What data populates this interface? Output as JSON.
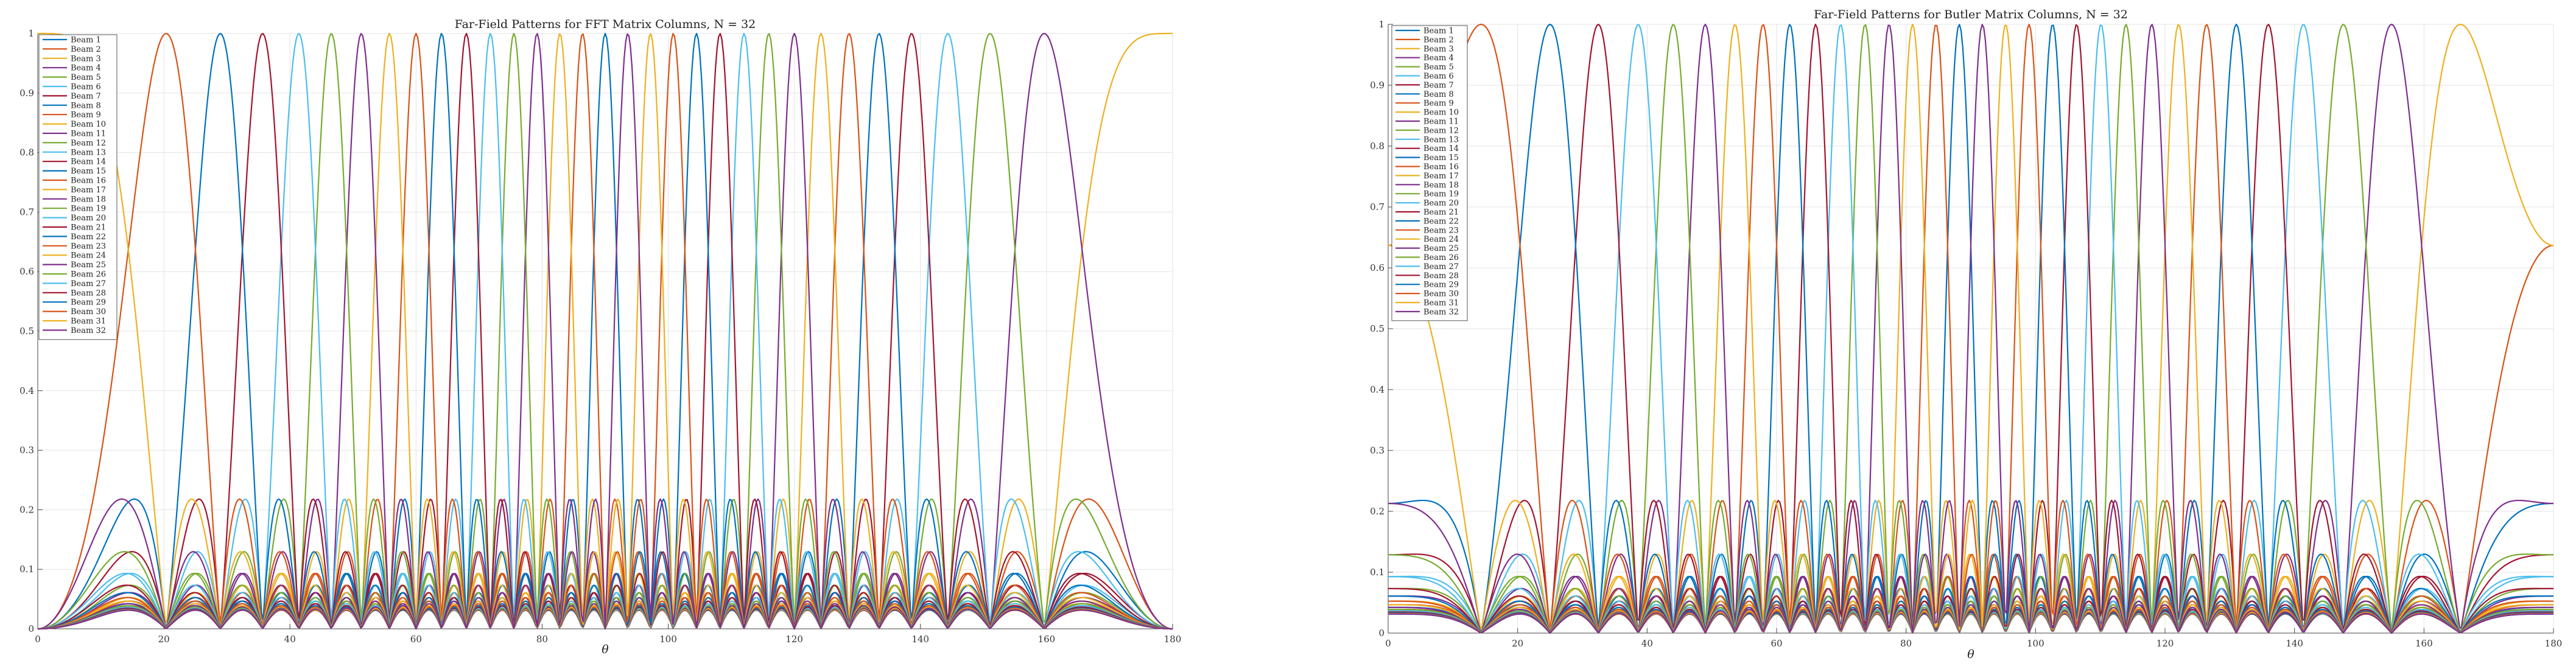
{
  "chart_data": [
    {
      "type": "line",
      "title": "Far-Field Patterns for FFT Matrix Columns, N = 32",
      "xlabel": "θ",
      "ylabel": "",
      "xlim": [
        0,
        180
      ],
      "ylim": [
        0,
        1
      ],
      "xticks": [
        "0",
        "20",
        "40",
        "60",
        "80",
        "100",
        "120",
        "140",
        "160",
        "180"
      ],
      "yticks": [
        "0",
        "0.1",
        "0.2",
        "0.3",
        "0.4",
        "0.5",
        "0.6",
        "0.7",
        "0.8",
        "0.9",
        "1"
      ],
      "grid": true,
      "legend_position": "top-left",
      "sample_step_deg": 0.25,
      "series_model": {
        "array_size": 32,
        "element_spacing_wavelengths": 0.5,
        "beam_phase_index_offset": 0
      },
      "series": [
        {
          "name": "Beam 1",
          "color": "#0072BD"
        },
        {
          "name": "Beam 2",
          "color": "#D95319"
        },
        {
          "name": "Beam 3",
          "color": "#EDB120"
        },
        {
          "name": "Beam 4",
          "color": "#7E2F8E"
        },
        {
          "name": "Beam 5",
          "color": "#77AC30"
        },
        {
          "name": "Beam 6",
          "color": "#4DBEEE"
        },
        {
          "name": "Beam 7",
          "color": "#A2142F"
        },
        {
          "name": "Beam 8",
          "color": "#0072BD"
        },
        {
          "name": "Beam 9",
          "color": "#D95319"
        },
        {
          "name": "Beam 10",
          "color": "#EDB120"
        },
        {
          "name": "Beam 11",
          "color": "#7E2F8E"
        },
        {
          "name": "Beam 12",
          "color": "#77AC30"
        },
        {
          "name": "Beam 13",
          "color": "#4DBEEE"
        },
        {
          "name": "Beam 14",
          "color": "#A2142F"
        },
        {
          "name": "Beam 15",
          "color": "#0072BD"
        },
        {
          "name": "Beam 16",
          "color": "#D95319"
        },
        {
          "name": "Beam 17",
          "color": "#EDB120"
        },
        {
          "name": "Beam 18",
          "color": "#7E2F8E"
        },
        {
          "name": "Beam 19",
          "color": "#77AC30"
        },
        {
          "name": "Beam 20",
          "color": "#4DBEEE"
        },
        {
          "name": "Beam 21",
          "color": "#A2142F"
        },
        {
          "name": "Beam 22",
          "color": "#0072BD"
        },
        {
          "name": "Beam 23",
          "color": "#D95319"
        },
        {
          "name": "Beam 24",
          "color": "#EDB120"
        },
        {
          "name": "Beam 25",
          "color": "#7E2F8E"
        },
        {
          "name": "Beam 26",
          "color": "#77AC30"
        },
        {
          "name": "Beam 27",
          "color": "#4DBEEE"
        },
        {
          "name": "Beam 28",
          "color": "#A2142F"
        },
        {
          "name": "Beam 29",
          "color": "#0072BD"
        },
        {
          "name": "Beam 30",
          "color": "#D95319"
        },
        {
          "name": "Beam 31",
          "color": "#EDB120"
        },
        {
          "name": "Beam 32",
          "color": "#7E2F8E"
        }
      ]
    },
    {
      "type": "line",
      "title": "Far-Field Patterns for Butler Matrix Columns, N = 32",
      "xlabel": "θ",
      "ylabel": "",
      "xlim": [
        0,
        180
      ],
      "ylim": [
        0,
        1
      ],
      "xticks": [
        "0",
        "20",
        "40",
        "60",
        "80",
        "100",
        "120",
        "140",
        "160",
        "180"
      ],
      "yticks": [
        "0",
        "0.1",
        "0.2",
        "0.3",
        "0.4",
        "0.5",
        "0.6",
        "0.7",
        "0.8",
        "0.9",
        "1"
      ],
      "grid": true,
      "legend_position": "top-left",
      "sample_step_deg": 0.25,
      "series_model": {
        "array_size": 32,
        "element_spacing_wavelengths": 0.5,
        "beam_phase_index_offset": 0.5
      },
      "series": [
        {
          "name": "Beam 1",
          "color": "#0072BD"
        },
        {
          "name": "Beam 2",
          "color": "#D95319"
        },
        {
          "name": "Beam 3",
          "color": "#EDB120"
        },
        {
          "name": "Beam 4",
          "color": "#7E2F8E"
        },
        {
          "name": "Beam 5",
          "color": "#77AC30"
        },
        {
          "name": "Beam 6",
          "color": "#4DBEEE"
        },
        {
          "name": "Beam 7",
          "color": "#A2142F"
        },
        {
          "name": "Beam 8",
          "color": "#0072BD"
        },
        {
          "name": "Beam 9",
          "color": "#D95319"
        },
        {
          "name": "Beam 10",
          "color": "#EDB120"
        },
        {
          "name": "Beam 11",
          "color": "#7E2F8E"
        },
        {
          "name": "Beam 12",
          "color": "#77AC30"
        },
        {
          "name": "Beam 13",
          "color": "#4DBEEE"
        },
        {
          "name": "Beam 14",
          "color": "#A2142F"
        },
        {
          "name": "Beam 15",
          "color": "#0072BD"
        },
        {
          "name": "Beam 16",
          "color": "#D95319"
        },
        {
          "name": "Beam 17",
          "color": "#EDB120"
        },
        {
          "name": "Beam 18",
          "color": "#7E2F8E"
        },
        {
          "name": "Beam 19",
          "color": "#77AC30"
        },
        {
          "name": "Beam 20",
          "color": "#4DBEEE"
        },
        {
          "name": "Beam 21",
          "color": "#A2142F"
        },
        {
          "name": "Beam 22",
          "color": "#0072BD"
        },
        {
          "name": "Beam 23",
          "color": "#D95319"
        },
        {
          "name": "Beam 24",
          "color": "#EDB120"
        },
        {
          "name": "Beam 25",
          "color": "#7E2F8E"
        },
        {
          "name": "Beam 26",
          "color": "#77AC30"
        },
        {
          "name": "Beam 27",
          "color": "#4DBEEE"
        },
        {
          "name": "Beam 28",
          "color": "#A2142F"
        },
        {
          "name": "Beam 29",
          "color": "#0072BD"
        },
        {
          "name": "Beam 30",
          "color": "#D95319"
        },
        {
          "name": "Beam 31",
          "color": "#EDB120"
        },
        {
          "name": "Beam 32",
          "color": "#7E2F8E"
        }
      ]
    }
  ]
}
